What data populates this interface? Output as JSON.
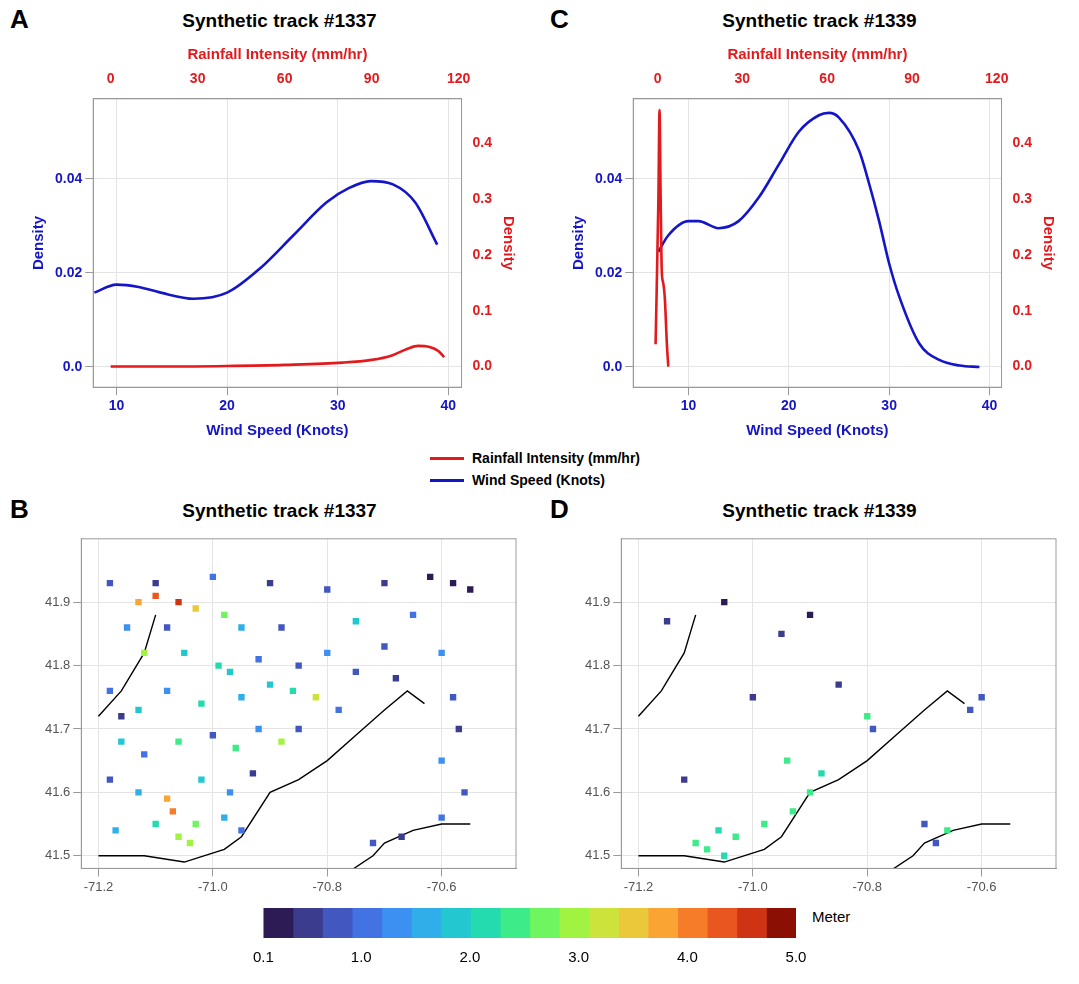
{
  "chart_data": [
    {
      "panel": "A",
      "type": "line",
      "title": "Synthetic track #1337",
      "x_label": "Wind Speed (Knots)",
      "x2_label": "Rainfall Intensity (mm/hr)",
      "y_label": "Density",
      "y2_label": "Density",
      "xlim": [
        7.9,
        41.2
      ],
      "xticks": [
        10,
        20,
        30,
        40
      ],
      "x2lim": [
        -6,
        121
      ],
      "x2ticks": [
        0,
        30,
        60,
        90,
        120
      ],
      "ylim": [
        -0.0043,
        0.057
      ],
      "yticks": [
        {
          "value": 0,
          "label": "0.0"
        },
        0.02,
        0.04
      ],
      "y2lim": [
        -0.037,
        0.48
      ],
      "y2ticks": [
        {
          "value": 0,
          "label": "0.0"
        },
        0.1,
        0.2,
        0.3,
        0.4
      ],
      "grid": true,
      "legend": "bottom",
      "series": [
        {
          "name": "Rainfall Intensity (mm/hr)",
          "color": "#e3191c",
          "axis": "y2",
          "x": [
            0,
            20,
            40,
            60,
            80,
            90,
            97,
            102,
            106,
            110,
            113,
            115
          ],
          "values": [
            0,
            0,
            0.001,
            0.003,
            0.007,
            0.012,
            0.02,
            0.031,
            0.037,
            0.035,
            0.028,
            0.017
          ]
        },
        {
          "name": "Wind Speed (Knots)",
          "color": "#1515c8",
          "x": [
            8,
            10,
            12,
            14,
            17,
            20,
            23,
            26,
            29,
            31,
            33,
            35,
            37,
            39
          ],
          "values": [
            0.0158,
            0.0175,
            0.017,
            0.0158,
            0.0145,
            0.0158,
            0.021,
            0.028,
            0.035,
            0.038,
            0.0395,
            0.0388,
            0.035,
            0.026
          ]
        }
      ]
    },
    {
      "panel": "C",
      "type": "line",
      "title": "Synthetic track #1339",
      "x_label": "Wind Speed (Knots)",
      "x2_label": "Rainfall Intensity (mm/hr)",
      "y_label": "Density",
      "y2_label": "Density",
      "xlim": [
        4.5,
        41.2
      ],
      "xticks": [
        10,
        20,
        30,
        40
      ],
      "x2lim": [
        -8.6,
        121.7
      ],
      "x2ticks": [
        0,
        30,
        60,
        90,
        120
      ],
      "ylim": [
        -0.0043,
        0.057
      ],
      "yticks": [
        {
          "value": 0,
          "label": "0.0"
        },
        0.02,
        0.04
      ],
      "y2lim": [
        -0.037,
        0.48
      ],
      "y2ticks": [
        {
          "value": 0,
          "label": "0.0"
        },
        0.1,
        0.2,
        0.3,
        0.4
      ],
      "grid": true,
      "series": [
        {
          "name": "Rainfall Intensity (mm/hr)",
          "color": "#e3191c",
          "axis": "y2",
          "x": [
            -0.7,
            0.3,
            0.7,
            1.1,
            1.5,
            2.0,
            2.6,
            3.3,
            3.8
          ],
          "values": [
            0.04,
            0.3,
            0.46,
            0.3,
            0.17,
            0.15,
            0.12,
            0.04,
            0
          ]
        },
        {
          "name": "Wind Speed (Knots)",
          "color": "#1515c8",
          "x": [
            7,
            8,
            10,
            11,
            13,
            15,
            17,
            19,
            21,
            23,
            24,
            25,
            27,
            28,
            29,
            30,
            31,
            33,
            35,
            37,
            39
          ],
          "values": [
            0.0245,
            0.028,
            0.031,
            0.031,
            0.0295,
            0.031,
            0.036,
            0.043,
            0.05,
            0.0535,
            0.054,
            0.053,
            0.046,
            0.039,
            0.031,
            0.022,
            0.015,
            0.005,
            0.0015,
            0.0003,
            0
          ]
        }
      ]
    },
    {
      "panel": "B",
      "type": "scatter",
      "title": "Synthetic track #1337",
      "xlim": [
        -71.23,
        -70.47
      ],
      "xticks": [
        -71.2,
        {
          "value": -71,
          "label": "-71.0"
        },
        -70.8,
        -70.6
      ],
      "ylim": [
        41.48,
        42.0
      ],
      "yticks": [
        41.5,
        41.6,
        41.7,
        41.8,
        41.9
      ],
      "grid": true,
      "coastline": [
        [
          [
            -71.2,
            41.5
          ],
          [
            -71.12,
            41.5
          ],
          [
            -71.05,
            41.49
          ],
          [
            -70.98,
            41.51
          ],
          [
            -70.95,
            41.53
          ],
          [
            -70.9,
            41.6
          ],
          [
            -70.85,
            41.62
          ],
          [
            -70.8,
            41.65
          ],
          [
            -70.75,
            41.69
          ],
          [
            -70.7,
            41.73
          ],
          [
            -70.66,
            41.76
          ],
          [
            -70.63,
            41.74
          ]
        ],
        [
          [
            -70.77,
            41.47
          ],
          [
            -70.72,
            41.5
          ],
          [
            -70.7,
            41.52
          ],
          [
            -70.65,
            41.54
          ],
          [
            -70.6,
            41.55
          ],
          [
            -70.55,
            41.55
          ]
        ],
        [
          [
            -71.2,
            41.72
          ],
          [
            -71.16,
            41.76
          ],
          [
            -71.12,
            41.82
          ],
          [
            -71.1,
            41.88
          ]
        ]
      ],
      "points": [
        [
          -71.18,
          41.93,
          0.8
        ],
        [
          -71.1,
          41.93,
          0.6
        ],
        [
          -71.0,
          41.94,
          1.0
        ],
        [
          -70.9,
          41.93,
          0.5
        ],
        [
          -70.8,
          41.92,
          0.7
        ],
        [
          -70.7,
          41.93,
          0.6
        ],
        [
          -70.58,
          41.93,
          0.3
        ],
        [
          -71.13,
          41.9,
          3.8
        ],
        [
          -71.1,
          41.91,
          4.2
        ],
        [
          -71.06,
          41.9,
          4.5
        ],
        [
          -71.03,
          41.89,
          3.5
        ],
        [
          -70.98,
          41.88,
          2.8
        ],
        [
          -71.15,
          41.86,
          1.2
        ],
        [
          -71.08,
          41.86,
          0.9
        ],
        [
          -70.95,
          41.86,
          1.5
        ],
        [
          -70.88,
          41.86,
          0.8
        ],
        [
          -70.75,
          41.87,
          1.8
        ],
        [
          -70.65,
          41.88,
          1.1
        ],
        [
          -71.12,
          41.82,
          3.0
        ],
        [
          -71.05,
          41.82,
          1.9
        ],
        [
          -70.99,
          41.8,
          2.1
        ],
        [
          -70.97,
          41.79,
          2.0
        ],
        [
          -70.92,
          41.81,
          1.0
        ],
        [
          -70.85,
          41.8,
          0.7
        ],
        [
          -70.8,
          41.82,
          1.3
        ],
        [
          -70.7,
          41.83,
          0.9
        ],
        [
          -70.6,
          41.82,
          1.4
        ],
        [
          -71.18,
          41.76,
          1.0
        ],
        [
          -71.13,
          41.73,
          2.0
        ],
        [
          -71.08,
          41.76,
          1.2
        ],
        [
          -71.02,
          41.74,
          2.2
        ],
        [
          -70.95,
          41.75,
          1.6
        ],
        [
          -70.9,
          41.77,
          2.0
        ],
        [
          -70.86,
          41.76,
          2.1
        ],
        [
          -70.82,
          41.75,
          3.2
        ],
        [
          -70.78,
          41.73,
          1.0
        ],
        [
          -70.75,
          41.79,
          0.8
        ],
        [
          -70.68,
          41.78,
          0.6
        ],
        [
          -70.58,
          41.75,
          0.9
        ],
        [
          -71.16,
          41.68,
          1.9
        ],
        [
          -71.12,
          41.66,
          1.1
        ],
        [
          -71.06,
          41.68,
          2.5
        ],
        [
          -71.0,
          41.69,
          0.9
        ],
        [
          -70.96,
          41.67,
          2.4
        ],
        [
          -70.92,
          41.7,
          1.3
        ],
        [
          -70.88,
          41.68,
          3.0
        ],
        [
          -70.85,
          41.7,
          0.8
        ],
        [
          -71.18,
          41.62,
          0.9
        ],
        [
          -71.13,
          41.6,
          1.7
        ],
        [
          -71.08,
          41.59,
          3.8
        ],
        [
          -71.07,
          41.57,
          4.0
        ],
        [
          -71.02,
          41.62,
          2.0
        ],
        [
          -70.97,
          41.6,
          1.2
        ],
        [
          -70.93,
          41.63,
          0.6
        ],
        [
          -71.17,
          41.54,
          1.5
        ],
        [
          -71.1,
          41.55,
          2.2
        ],
        [
          -71.06,
          41.53,
          2.9
        ],
        [
          -71.04,
          41.52,
          3.0
        ],
        [
          -71.03,
          41.55,
          2.7
        ],
        [
          -70.98,
          41.56,
          1.6
        ],
        [
          -70.95,
          41.54,
          1.1
        ],
        [
          -70.72,
          41.52,
          0.7
        ],
        [
          -70.67,
          41.53,
          0.6
        ],
        [
          -70.6,
          41.56,
          1.0
        ],
        [
          -70.56,
          41.6,
          0.8
        ],
        [
          -70.6,
          41.65,
          1.2
        ],
        [
          -70.57,
          41.7,
          0.6
        ],
        [
          -71.16,
          41.72,
          0.5
        ],
        [
          -70.62,
          41.94,
          0.2
        ],
        [
          -70.55,
          41.92,
          0.3
        ]
      ]
    },
    {
      "panel": "D",
      "type": "scatter",
      "title": "Synthetic track #1339",
      "xlim": [
        -71.23,
        -70.47
      ],
      "xticks": [
        -71.2,
        {
          "value": -71,
          "label": "-71.0"
        },
        -70.8,
        -70.6
      ],
      "ylim": [
        41.48,
        42.0
      ],
      "yticks": [
        41.5,
        41.6,
        41.7,
        41.8,
        41.9
      ],
      "grid": true,
      "coastline": [
        [
          [
            -71.2,
            41.5
          ],
          [
            -71.12,
            41.5
          ],
          [
            -71.05,
            41.49
          ],
          [
            -70.98,
            41.51
          ],
          [
            -70.95,
            41.53
          ],
          [
            -70.9,
            41.6
          ],
          [
            -70.85,
            41.62
          ],
          [
            -70.8,
            41.65
          ],
          [
            -70.75,
            41.69
          ],
          [
            -70.7,
            41.73
          ],
          [
            -70.66,
            41.76
          ],
          [
            -70.63,
            41.74
          ]
        ],
        [
          [
            -70.77,
            41.47
          ],
          [
            -70.72,
            41.5
          ],
          [
            -70.7,
            41.52
          ],
          [
            -70.65,
            41.54
          ],
          [
            -70.6,
            41.55
          ],
          [
            -70.55,
            41.55
          ]
        ],
        [
          [
            -71.2,
            41.72
          ],
          [
            -71.16,
            41.76
          ],
          [
            -71.12,
            41.82
          ],
          [
            -71.1,
            41.88
          ]
        ]
      ],
      "points": [
        [
          -71.15,
          41.87,
          0.4
        ],
        [
          -71.05,
          41.9,
          0.3
        ],
        [
          -70.95,
          41.85,
          0.5
        ],
        [
          -71.12,
          41.62,
          0.6
        ],
        [
          -71.0,
          41.75,
          0.5
        ],
        [
          -70.85,
          41.77,
          0.4
        ],
        [
          -71.1,
          41.52,
          2.3
        ],
        [
          -71.08,
          41.51,
          2.4
        ],
        [
          -71.05,
          41.5,
          2.2
        ],
        [
          -71.03,
          41.53,
          2.3
        ],
        [
          -71.06,
          41.54,
          2.2
        ],
        [
          -70.98,
          41.55,
          2.5
        ],
        [
          -70.93,
          41.57,
          2.4
        ],
        [
          -70.9,
          41.6,
          2.3
        ],
        [
          -70.88,
          41.63,
          2.2
        ],
        [
          -70.94,
          41.65,
          2.3
        ],
        [
          -70.8,
          41.72,
          2.4
        ],
        [
          -70.79,
          41.7,
          0.9
        ],
        [
          -70.62,
          41.73,
          0.8
        ],
        [
          -70.6,
          41.75,
          0.7
        ],
        [
          -70.7,
          41.55,
          0.9
        ],
        [
          -70.68,
          41.52,
          0.7
        ],
        [
          -70.66,
          41.54,
          2.3
        ],
        [
          -70.9,
          41.88,
          0.3
        ]
      ]
    }
  ],
  "colorbar": {
    "label": "Meter",
    "range": [
      0.1,
      5.0
    ],
    "ticks": [
      0.1,
      {
        "value": 1,
        "label": "1.0"
      },
      {
        "value": 2,
        "label": "2.0"
      },
      {
        "value": 3,
        "label": "3.0"
      },
      {
        "value": 4,
        "label": "4.0"
      },
      {
        "value": 5,
        "label": "5.0"
      }
    ],
    "colors": [
      "#2d1b55",
      "#3c3c8f",
      "#4257c0",
      "#4373e3",
      "#3c90f2",
      "#2faeea",
      "#22c7cf",
      "#23dbaf",
      "#3deb88",
      "#6ef560",
      "#a1f342",
      "#cbe33a",
      "#ebc83a",
      "#f9a433",
      "#f77c29",
      "#e9561f",
      "#ce3413",
      "#8b1003"
    ]
  }
}
